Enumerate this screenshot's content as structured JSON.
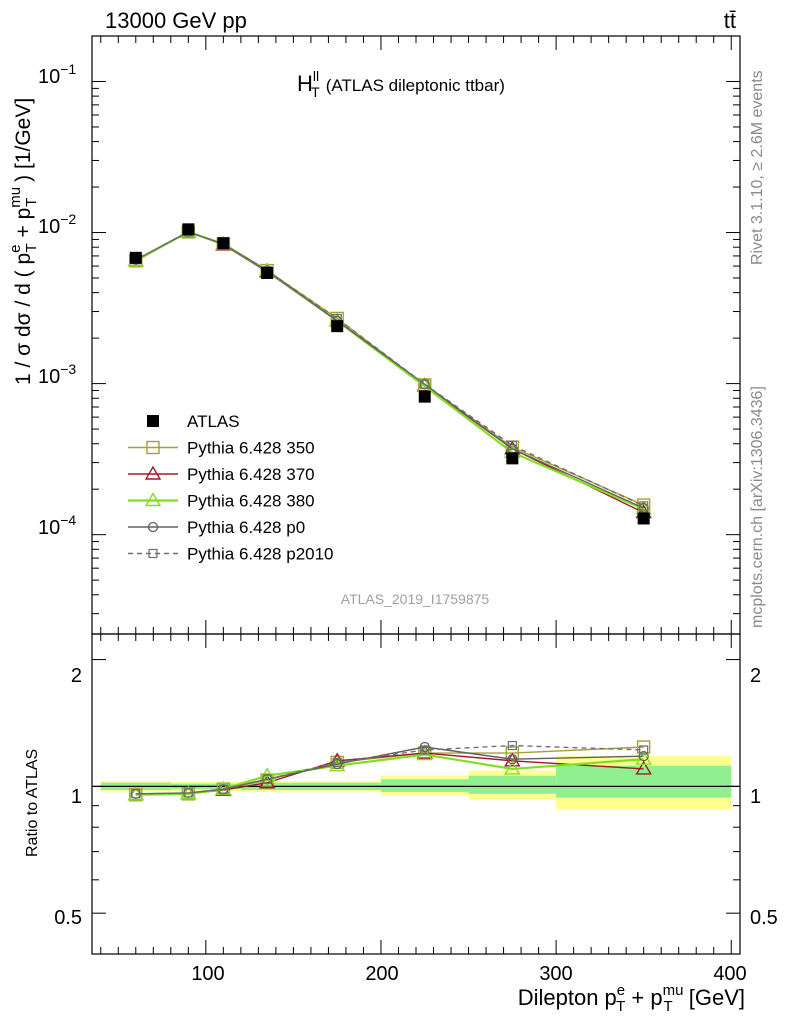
{
  "header": {
    "left": "13000 GeV pp",
    "right": "tt̄"
  },
  "title": {
    "main": "H",
    "main_sub": "T",
    "main_sup": "ll",
    "rest": "(ATLAS dileptonic ttbar)"
  },
  "side_labels": {
    "rivet": "Rivet 3.1.10, ≥ 2.6M events",
    "mcplots": "mcplots.cern.ch [arXiv:1306.3436]"
  },
  "watermark": "ATLAS_2019_I1759875",
  "labels": {
    "y_main_start": "1 / σ  dσ / d ( p",
    "y_main_e": "e",
    "y_main_plus": " + p",
    "y_main_mu": "mu",
    "y_main_end": " ) [1/GeV]",
    "T": "T",
    "y_ratio": "Ratio to ATLAS",
    "x_start": "Dilepton p",
    "x_e": "e",
    "x_plus": " + p",
    "x_mu": "mu",
    "x_end": " [GeV]"
  },
  "ticks": {
    "main_y": [
      "10",
      "10",
      "10",
      "10"
    ],
    "main_y_exp": [
      "−1",
      "−2",
      "−3",
      "−4"
    ],
    "ratio_y": [
      "2",
      "1",
      "0.5"
    ],
    "ratio_y_right": [
      "2",
      "1",
      "0.5"
    ],
    "x": [
      "100",
      "200",
      "300",
      "400"
    ]
  },
  "colors": {
    "atlas": "#000000",
    "p350": "#a8a030",
    "p370": "#a01828",
    "p380": "#80e020",
    "p0": "#606060",
    "p2010": "#707070",
    "band_inner": "#90f090",
    "band_outer": "#ffff90"
  },
  "chart_data": {
    "type": "line",
    "x_scale": "linear",
    "xlim": [
      35,
      405
    ],
    "main": {
      "y_scale": "log",
      "ylim": [
        2.2e-05,
        0.2
      ]
    },
    "ratio": {
      "y_scale": "log",
      "ylim": [
        0.4,
        2.3
      ]
    },
    "x": [
      60,
      90,
      110,
      135,
      175,
      225,
      275,
      350
    ],
    "bins": [
      [
        40,
        80
      ],
      [
        80,
        100
      ],
      [
        100,
        120
      ],
      [
        120,
        150
      ],
      [
        150,
        200
      ],
      [
        200,
        250
      ],
      [
        250,
        300
      ],
      [
        300,
        400
      ]
    ],
    "series": [
      {
        "key": "atlas",
        "name": "ATLAS",
        "marker": "filled-square",
        "values": [
          0.0068,
          0.0105,
          0.0085,
          0.0054,
          0.0024,
          0.00082,
          0.00032,
          0.000128
        ],
        "ratio": [
          1,
          1,
          1,
          1,
          1,
          1,
          1,
          1
        ]
      },
      {
        "key": "p350",
        "name": "Pythia 6.428 350",
        "marker": "open-square",
        "dash": "",
        "values": [
          0.0065,
          0.0101,
          0.0084,
          0.0056,
          0.0027,
          0.00098,
          0.00038,
          0.000157
        ],
        "ratio": [
          0.955,
          0.96,
          0.985,
          1.035,
          1.14,
          1.2,
          1.2,
          1.24
        ]
      },
      {
        "key": "p370",
        "name": "Pythia 6.428 370",
        "marker": "open-triangle",
        "dash": "",
        "values": [
          0.0065,
          0.0101,
          0.0083,
          0.0055,
          0.0026,
          0.00097,
          0.00037,
          0.00014
        ],
        "ratio": [
          0.955,
          0.96,
          0.98,
          1.02,
          1.15,
          1.2,
          1.15,
          1.1
        ]
      },
      {
        "key": "p380",
        "name": "Pythia 6.428 380",
        "marker": "open-triangle",
        "dash": "",
        "values": [
          0.0065,
          0.0101,
          0.0084,
          0.0056,
          0.0026,
          0.00096,
          0.00035,
          0.000148
        ],
        "ratio": [
          0.955,
          0.96,
          0.985,
          1.06,
          1.12,
          1.19,
          1.1,
          1.16
        ]
      },
      {
        "key": "p0",
        "name": "Pythia 6.428 p0",
        "marker": "open-circle",
        "dash": "",
        "values": [
          0.0066,
          0.0101,
          0.0084,
          0.0056,
          0.0026,
          0.00099,
          0.00037,
          0.00015
        ],
        "ratio": [
          0.96,
          0.965,
          0.985,
          1.04,
          1.13,
          1.24,
          1.16,
          1.18
        ]
      },
      {
        "key": "p2010",
        "name": "Pythia 6.428 p2010",
        "marker": "open-square-small",
        "dash": "5,4",
        "values": [
          0.0066,
          0.0101,
          0.0084,
          0.0056,
          0.0027,
          0.00099,
          0.00039,
          0.000155
        ],
        "ratio": [
          0.96,
          0.965,
          0.985,
          1.04,
          1.14,
          1.22,
          1.25,
          1.22
        ]
      }
    ],
    "uncertainty_band": {
      "inner": [
        [
          0.98,
          1.02
        ],
        [
          0.985,
          1.015
        ],
        [
          0.985,
          1.015
        ],
        [
          0.98,
          1.02
        ],
        [
          0.98,
          1.02
        ],
        [
          0.97,
          1.04
        ],
        [
          0.96,
          1.06
        ],
        [
          0.94,
          1.12
        ]
      ],
      "outer": [
        [
          0.97,
          1.03
        ],
        [
          0.975,
          1.025
        ],
        [
          0.975,
          1.025
        ],
        [
          0.97,
          1.03
        ],
        [
          0.97,
          1.03
        ],
        [
          0.95,
          1.06
        ],
        [
          0.93,
          1.09
        ],
        [
          0.88,
          1.18
        ]
      ]
    }
  }
}
